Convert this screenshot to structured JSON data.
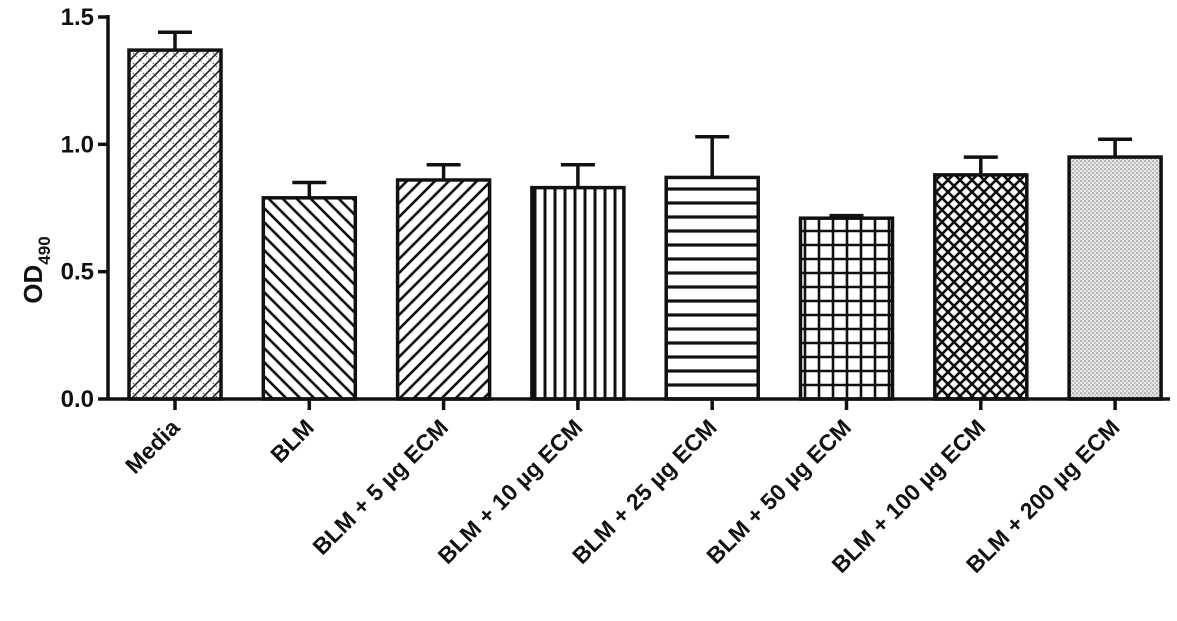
{
  "chart_data": {
    "type": "bar",
    "ylabel_main": "OD",
    "ylabel_sub": "490",
    "ylim": [
      0,
      1.5
    ],
    "yticks": [
      {
        "value": 0.0,
        "label": "0.0"
      },
      {
        "value": 0.5,
        "label": "0.5"
      },
      {
        "value": 1.0,
        "label": "1.0"
      },
      {
        "value": 1.5,
        "label": "1.5"
      }
    ],
    "categories": [
      "Media",
      "BLM",
      "BLM + 5 µg ECM",
      "BLM + 10 µg ECM",
      "BLM + 25 µg ECM",
      "BLM + 50 µg ECM",
      "BLM + 100 µg ECM",
      "BLM + 200 µg ECM"
    ],
    "values": [
      1.37,
      0.79,
      0.86,
      0.83,
      0.87,
      0.71,
      0.88,
      0.95
    ],
    "errors": [
      0.07,
      0.06,
      0.06,
      0.09,
      0.16,
      0.01,
      0.07,
      0.07
    ],
    "patterns": [
      "diag-cross-fine",
      "diag-back",
      "diag-fwd",
      "vertical",
      "horizontal",
      "grid",
      "crosshatch",
      "dots"
    ],
    "grid": false
  }
}
